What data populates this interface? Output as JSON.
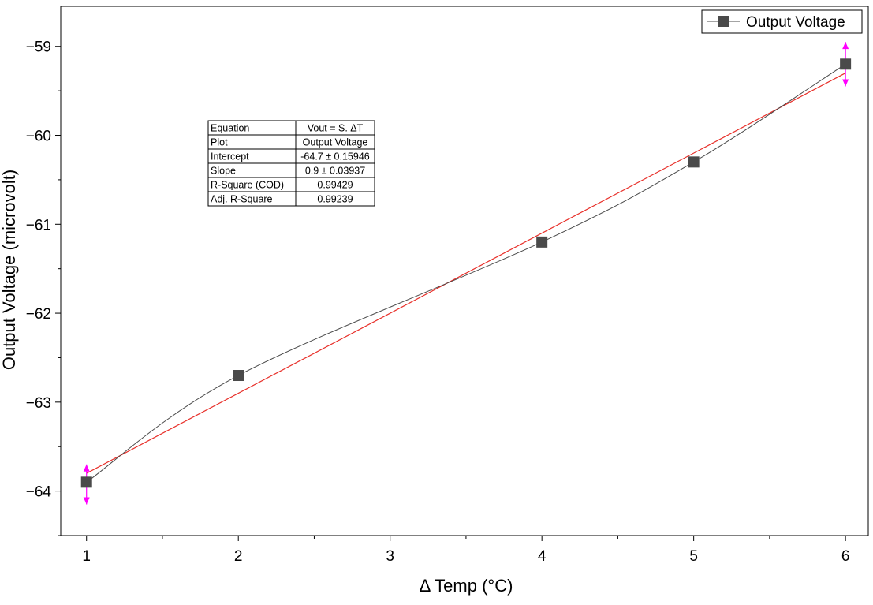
{
  "chart_data": {
    "type": "line",
    "title": "",
    "xlabel": "Δ Temp (°C)",
    "ylabel": "Output Voltage (microvolt)",
    "xlim": [
      0.83,
      6.15
    ],
    "ylim": [
      -64.5,
      -58.55
    ],
    "xticks": [
      1,
      2,
      3,
      4,
      5,
      6
    ],
    "xminor_ticks": [
      1.5,
      2.5,
      3.5,
      4.5,
      5.5
    ],
    "yticks": [
      -64,
      -63,
      -62,
      -61,
      -60,
      -59
    ],
    "yminor_ticks": [
      -64.5,
      -63.5,
      -62.5,
      -61.5,
      -60.5,
      -59.5
    ],
    "tick_labels": {
      "x": [
        "1",
        "2",
        "3",
        "4",
        "5",
        "6"
      ],
      "y": [
        "−64",
        "−63",
        "−62",
        "−61",
        "−60",
        "−59"
      ]
    },
    "series": [
      {
        "name": "Output Voltage",
        "marker": "square",
        "color": "#4a4a4a",
        "x": [
          1,
          2,
          4,
          5,
          6
        ],
        "y": [
          -63.9,
          -62.7,
          -61.2,
          -60.3,
          -59.2
        ],
        "error_bars": [
          {
            "x": 1,
            "plus": 0.2,
            "minus": 0.25
          },
          {
            "x": 6,
            "plus": 0.25,
            "minus": 0.25
          }
        ],
        "error_color": "#ff00ff"
      }
    ],
    "fit_line": {
      "color": "#e8302a",
      "intercept": -64.7,
      "slope": 0.9,
      "x_range": [
        1,
        6
      ]
    },
    "legend": {
      "position": "top-right",
      "entries": [
        "Output Voltage"
      ]
    },
    "stats_table": {
      "position": "upper-left",
      "rows": [
        [
          "Equation",
          "Vout = S.  ΔT"
        ],
        [
          "Plot",
          "Output Voltage"
        ],
        [
          "Intercept",
          "-64.7 ± 0.15946"
        ],
        [
          "Slope",
          "0.9 ± 0.03937"
        ],
        [
          "R-Square (COD)",
          "0.99429"
        ],
        [
          "Adj. R-Square",
          "0.99239"
        ]
      ]
    }
  }
}
